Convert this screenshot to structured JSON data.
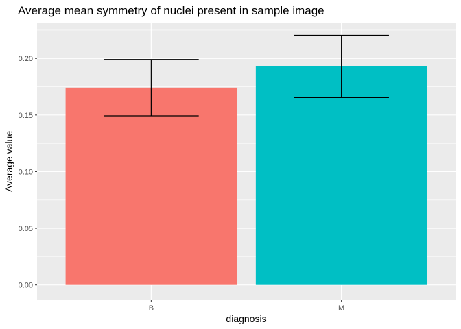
{
  "chart_data": {
    "type": "bar",
    "title": "Average mean symmetry of nuclei present in sample image",
    "xlabel": "diagnosis",
    "ylabel": "Average value",
    "categories": [
      "B",
      "M"
    ],
    "values": [
      0.1742,
      0.1929
    ],
    "error_low": [
      0.1493,
      0.1654
    ],
    "error_high": [
      0.1991,
      0.2204
    ],
    "colors": [
      "#F8766D",
      "#00BFC4"
    ],
    "ylim": [
      -0.0135,
      0.2316
    ],
    "yticks": [
      0.0,
      0.05,
      0.1,
      0.15,
      0.2
    ],
    "ytick_labels": [
      "0.00",
      "0.05",
      "0.10",
      "0.15",
      "0.20"
    ],
    "grid": true,
    "panel_background": "#EBEBEB",
    "grid_color": "#FFFFFF"
  }
}
